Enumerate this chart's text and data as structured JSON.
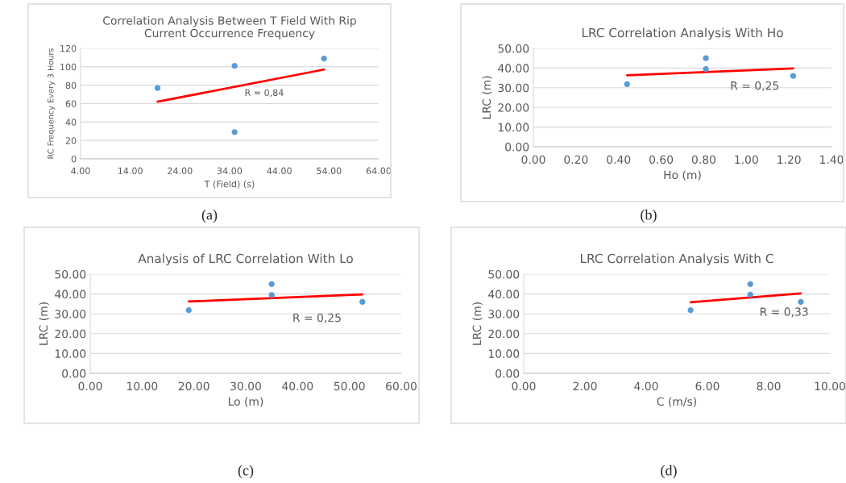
{
  "chart_data": [
    {
      "type": "scatter",
      "title": "Correlation Analysis Between T Field With Rip\nCurrent Occurrence Frequency",
      "xlabel": "T (Field) (s)",
      "ylabel": "RC Frequency Every 3 Hours",
      "series": [
        {
          "color": "#5b9bd5",
          "marker": "circle",
          "x": [
            19.5,
            35,
            35,
            53
          ],
          "values": [
            77,
            101,
            29,
            109
          ]
        },
        {
          "type": "line",
          "color": "#ff0000",
          "x": [
            19.5,
            53
          ],
          "values": [
            62,
            97
          ]
        }
      ],
      "xlim": [
        4,
        64
      ],
      "xticks": [
        {
          "value": 4,
          "label": "4.00"
        },
        {
          "value": 14,
          "label": "14.00"
        },
        {
          "value": 24,
          "label": "24.00"
        },
        {
          "value": 34,
          "label": "34.00"
        },
        {
          "value": 44,
          "label": "44.00"
        },
        {
          "value": 54,
          "label": "54.00"
        },
        {
          "value": 64,
          "label": "64.00"
        }
      ],
      "ylim": [
        0,
        120
      ],
      "yticks": [
        0,
        20,
        40,
        60,
        80,
        100,
        120
      ],
      "grid": "y",
      "annotations": [
        "R = 0,84",
        "(a)"
      ]
    },
    {
      "type": "scatter",
      "title": "LRC Correlation Analysis With Ho",
      "xlabel": "Ho (m)",
      "ylabel": "LRC (m)",
      "series": [
        {
          "color": "#5b9bd5",
          "marker": "circle",
          "x": [
            0.44,
            0.81,
            0.81,
            1.22
          ],
          "values": [
            31.8,
            45,
            39.5,
            36
          ]
        },
        {
          "type": "line",
          "color": "#ff0000",
          "x": [
            0.44,
            1.22
          ],
          "values": [
            36.3,
            39.8
          ]
        }
      ],
      "xlim": [
        0,
        1.4
      ],
      "xticks": [
        {
          "value": 0,
          "label": "0.00"
        },
        {
          "value": 0.2,
          "label": "0.20"
        },
        {
          "value": 0.4,
          "label": "0.40"
        },
        {
          "value": 0.6,
          "label": "0.60"
        },
        {
          "value": 0.8,
          "label": "0.80"
        },
        {
          "value": 1.0,
          "label": "1.00"
        },
        {
          "value": 1.2,
          "label": "1.20"
        },
        {
          "value": 1.4,
          "label": "1.40"
        }
      ],
      "ylim": [
        0,
        50
      ],
      "yticks": [
        {
          "value": 0,
          "label": "0.00"
        },
        {
          "value": 10,
          "label": "10.00"
        },
        {
          "value": 20,
          "label": "20.00"
        },
        {
          "value": 30,
          "label": "30.00"
        },
        {
          "value": 40,
          "label": "40.00"
        },
        {
          "value": 50,
          "label": "50.00"
        }
      ],
      "grid": "y",
      "annotations": [
        "R = 0,25",
        "(b)"
      ]
    },
    {
      "type": "scatter",
      "title": "Analysis of LRC Correlation With Lo",
      "xlabel": "Lo (m)",
      "ylabel": "LRC (m)",
      "series": [
        {
          "color": "#5b9bd5",
          "marker": "circle",
          "x": [
            19,
            35,
            35,
            52.5
          ],
          "values": [
            31.8,
            45,
            39.5,
            36
          ]
        },
        {
          "type": "line",
          "color": "#ff0000",
          "x": [
            19,
            52.5
          ],
          "values": [
            36.2,
            39.8
          ]
        }
      ],
      "xlim": [
        0,
        60
      ],
      "xticks": [
        {
          "value": 0,
          "label": "0.00"
        },
        {
          "value": 10,
          "label": "10.00"
        },
        {
          "value": 20,
          "label": "20.00"
        },
        {
          "value": 30,
          "label": "30.00"
        },
        {
          "value": 40,
          "label": "40.00"
        },
        {
          "value": 50,
          "label": "50.00"
        },
        {
          "value": 60,
          "label": "60.00"
        }
      ],
      "ylim": [
        0,
        50
      ],
      "yticks": [
        {
          "value": 0,
          "label": "0.00"
        },
        {
          "value": 10,
          "label": "10.00"
        },
        {
          "value": 20,
          "label": "20.00"
        },
        {
          "value": 30,
          "label": "30.00"
        },
        {
          "value": 40,
          "label": "40.00"
        },
        {
          "value": 50,
          "label": "50.00"
        }
      ],
      "grid": "y",
      "annotations": [
        "R = 0,25",
        "(c)"
      ]
    },
    {
      "type": "scatter",
      "title": "LRC Correlation Analysis With C",
      "xlabel": "C (m/s)",
      "ylabel": "LRC (m)",
      "series": [
        {
          "color": "#5b9bd5",
          "marker": "circle",
          "x": [
            5.45,
            7.4,
            7.4,
            9.05
          ],
          "values": [
            31.8,
            45,
            39.7,
            36
          ]
        },
        {
          "type": "line",
          "color": "#ff0000",
          "x": [
            5.45,
            9.05
          ],
          "values": [
            35.8,
            40.3
          ]
        }
      ],
      "xlim": [
        0,
        10
      ],
      "xticks": [
        {
          "value": 0,
          "label": "0.00"
        },
        {
          "value": 2,
          "label": "2.00"
        },
        {
          "value": 4,
          "label": "4.00"
        },
        {
          "value": 6,
          "label": "6.00"
        },
        {
          "value": 8,
          "label": "8.00"
        },
        {
          "value": 10,
          "label": "10.00"
        }
      ],
      "ylim": [
        0,
        50
      ],
      "yticks": [
        {
          "value": 0,
          "label": "0.00"
        },
        {
          "value": 10,
          "label": "10.00"
        },
        {
          "value": 20,
          "label": "20.00"
        },
        {
          "value": 30,
          "label": "30.00"
        },
        {
          "value": 40,
          "label": "40.00"
        },
        {
          "value": 50,
          "label": "50.00"
        }
      ],
      "grid": "y",
      "annotations": [
        "R = 0,33",
        "(d)"
      ]
    }
  ]
}
